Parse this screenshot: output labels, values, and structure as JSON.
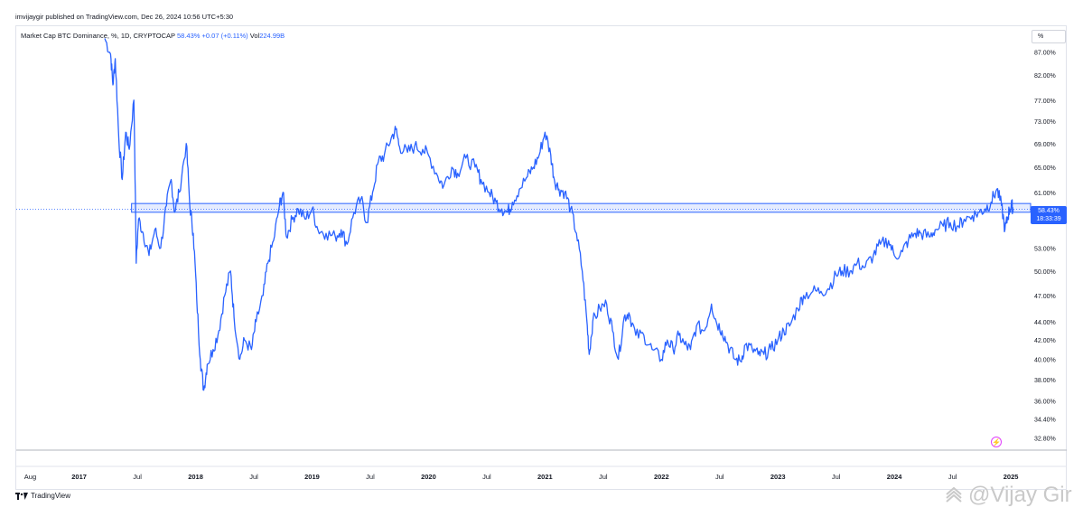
{
  "header": {
    "publisher_line": "imvijaygir published on TradingView.com, Dec 26, 2024 10:56 UTC+5:30"
  },
  "legend": {
    "symbol": "Market Cap BTC Dominance, %, 1D, CRYPTOCAP",
    "price": "58.43%",
    "change": "+0.07 (+0.11%)",
    "vol_label": "Vol",
    "vol_value": "224.99B"
  },
  "scale_button": "%",
  "price_tag": {
    "value": "58.43%",
    "countdown": "18:33:39"
  },
  "footer": {
    "brand": "TradingView",
    "watermark": "@Vijay Gir"
  },
  "colors": {
    "series": "#2962ff",
    "axis_text": "#131722",
    "grid": "#f0f3fa",
    "highlight_box": "#2962ff"
  },
  "chart_data": {
    "type": "line",
    "title": "Market Cap BTC Dominance, %, 1D, CRYPTOCAP",
    "y_scale": "log",
    "ylim": [
      31.8,
      92.6
    ],
    "xlim": [
      2016.46,
      2025.17
    ],
    "y_ticks": [
      "87.00%",
      "82.00%",
      "77.00%",
      "73.00%",
      "69.00%",
      "65.00%",
      "61.00%",
      "58.43%",
      "53.00%",
      "50.00%",
      "47.00%",
      "44.00%",
      "42.00%",
      "40.00%",
      "38.00%",
      "36.00%",
      "34.40%",
      "32.80%"
    ],
    "x_ticks": [
      {
        "label": "Aug",
        "t": 2016.58
      },
      {
        "label": "2017",
        "t": 2017.0
      },
      {
        "label": "Jul",
        "t": 2017.5
      },
      {
        "label": "2018",
        "t": 2018.0
      },
      {
        "label": "Jul",
        "t": 2018.5
      },
      {
        "label": "2019",
        "t": 2019.0
      },
      {
        "label": "Jul",
        "t": 2019.5
      },
      {
        "label": "2020",
        "t": 2020.0
      },
      {
        "label": "Jul",
        "t": 2020.5
      },
      {
        "label": "2021",
        "t": 2021.0
      },
      {
        "label": "Jul",
        "t": 2021.5
      },
      {
        "label": "2022",
        "t": 2022.0
      },
      {
        "label": "Jul",
        "t": 2022.5
      },
      {
        "label": "2023",
        "t": 2023.0
      },
      {
        "label": "Jul",
        "t": 2023.5
      },
      {
        "label": "2024",
        "t": 2024.0
      },
      {
        "label": "Jul",
        "t": 2024.5
      },
      {
        "label": "2025",
        "t": 2025.0
      }
    ],
    "highlight_zone": {
      "low": 58.0,
      "high": 59.3,
      "t_start": 2017.45,
      "t_end": 2025.17
    },
    "current_value": 58.43,
    "series": [
      {
        "points": [
          [
            2017.22,
            90.0
          ],
          [
            2017.27,
            86.5
          ],
          [
            2017.29,
            80.0
          ],
          [
            2017.31,
            85.5
          ],
          [
            2017.34,
            70.0
          ],
          [
            2017.37,
            63.0
          ],
          [
            2017.4,
            71.0
          ],
          [
            2017.43,
            68.0
          ],
          [
            2017.47,
            77.0
          ],
          [
            2017.49,
            51.0
          ],
          [
            2017.51,
            57.0
          ],
          [
            2017.55,
            55.0
          ],
          [
            2017.6,
            52.0
          ],
          [
            2017.65,
            55.5
          ],
          [
            2017.7,
            53.0
          ],
          [
            2017.75,
            59.0
          ],
          [
            2017.79,
            63.0
          ],
          [
            2017.82,
            58.0
          ],
          [
            2017.86,
            61.0
          ],
          [
            2017.92,
            69.0
          ],
          [
            2017.95,
            59.0
          ],
          [
            2017.98,
            55.0
          ],
          [
            2018.01,
            46.5
          ],
          [
            2018.04,
            40.0
          ],
          [
            2018.07,
            37.0
          ],
          [
            2018.1,
            39.5
          ],
          [
            2018.15,
            41.0
          ],
          [
            2018.2,
            43.0
          ],
          [
            2018.25,
            47.0
          ],
          [
            2018.3,
            50.0
          ],
          [
            2018.33,
            44.5
          ],
          [
            2018.38,
            40.0
          ],
          [
            2018.42,
            42.0
          ],
          [
            2018.48,
            41.0
          ],
          [
            2018.52,
            44.0
          ],
          [
            2018.58,
            47.0
          ],
          [
            2018.62,
            51.0
          ],
          [
            2018.67,
            54.0
          ],
          [
            2018.72,
            59.0
          ],
          [
            2018.75,
            61.0
          ],
          [
            2018.78,
            54.5
          ],
          [
            2018.83,
            57.0
          ],
          [
            2018.88,
            58.5
          ],
          [
            2018.94,
            57.0
          ],
          [
            2019.0,
            58.5
          ],
          [
            2019.05,
            55.5
          ],
          [
            2019.12,
            55.0
          ],
          [
            2019.2,
            54.5
          ],
          [
            2019.25,
            55.5
          ],
          [
            2019.3,
            53.5
          ],
          [
            2019.36,
            58.0
          ],
          [
            2019.42,
            60.0
          ],
          [
            2019.47,
            56.5
          ],
          [
            2019.52,
            61.0
          ],
          [
            2019.57,
            66.0
          ],
          [
            2019.62,
            67.0
          ],
          [
            2019.68,
            70.0
          ],
          [
            2019.72,
            71.5
          ],
          [
            2019.75,
            68.5
          ],
          [
            2019.82,
            67.5
          ],
          [
            2019.88,
            68.5
          ],
          [
            2019.95,
            68.0
          ],
          [
            2020.0,
            67.0
          ],
          [
            2020.08,
            63.5
          ],
          [
            2020.13,
            62.0
          ],
          [
            2020.2,
            65.0
          ],
          [
            2020.25,
            64.0
          ],
          [
            2020.32,
            66.5
          ],
          [
            2020.4,
            65.0
          ],
          [
            2020.45,
            63.0
          ],
          [
            2020.52,
            61.0
          ],
          [
            2020.58,
            59.5
          ],
          [
            2020.63,
            58.5
          ],
          [
            2020.68,
            58.0
          ],
          [
            2020.72,
            59.5
          ],
          [
            2020.78,
            61.5
          ],
          [
            2020.85,
            63.5
          ],
          [
            2020.9,
            65.0
          ],
          [
            2020.95,
            67.0
          ],
          [
            2021.0,
            71.0
          ],
          [
            2021.05,
            67.0
          ],
          [
            2021.08,
            63.0
          ],
          [
            2021.12,
            61.5
          ],
          [
            2021.17,
            61.0
          ],
          [
            2021.22,
            58.5
          ],
          [
            2021.27,
            55.0
          ],
          [
            2021.32,
            50.0
          ],
          [
            2021.36,
            44.0
          ],
          [
            2021.38,
            40.5
          ],
          [
            2021.41,
            44.0
          ],
          [
            2021.47,
            45.5
          ],
          [
            2021.53,
            46.0
          ],
          [
            2021.58,
            43.0
          ],
          [
            2021.63,
            40.0
          ],
          [
            2021.68,
            44.5
          ],
          [
            2021.72,
            45.0
          ],
          [
            2021.78,
            42.5
          ],
          [
            2021.85,
            42.5
          ],
          [
            2021.92,
            41.0
          ],
          [
            2022.0,
            40.0
          ],
          [
            2022.05,
            42.0
          ],
          [
            2022.1,
            41.0
          ],
          [
            2022.15,
            42.5
          ],
          [
            2022.2,
            41.5
          ],
          [
            2022.25,
            41.0
          ],
          [
            2022.3,
            43.5
          ],
          [
            2022.37,
            43.0
          ],
          [
            2022.43,
            46.0
          ],
          [
            2022.47,
            44.0
          ],
          [
            2022.52,
            43.0
          ],
          [
            2022.57,
            41.5
          ],
          [
            2022.63,
            40.0
          ],
          [
            2022.68,
            39.8
          ],
          [
            2022.72,
            41.5
          ],
          [
            2022.78,
            41.0
          ],
          [
            2022.83,
            40.5
          ],
          [
            2022.88,
            40.5
          ],
          [
            2022.94,
            41.0
          ],
          [
            2023.0,
            42.0
          ],
          [
            2023.05,
            43.0
          ],
          [
            2023.1,
            43.5
          ],
          [
            2023.17,
            45.5
          ],
          [
            2023.22,
            47.0
          ],
          [
            2023.3,
            47.5
          ],
          [
            2023.37,
            47.5
          ],
          [
            2023.43,
            47.8
          ],
          [
            2023.5,
            49.5
          ],
          [
            2023.55,
            50.0
          ],
          [
            2023.62,
            50.0
          ],
          [
            2023.68,
            51.0
          ],
          [
            2023.75,
            50.5
          ],
          [
            2023.82,
            52.0
          ],
          [
            2023.88,
            53.5
          ],
          [
            2023.95,
            54.0
          ],
          [
            2024.0,
            52.0
          ],
          [
            2024.07,
            52.5
          ],
          [
            2024.12,
            54.0
          ],
          [
            2024.18,
            55.0
          ],
          [
            2024.23,
            55.0
          ],
          [
            2024.3,
            54.5
          ],
          [
            2024.35,
            55.5
          ],
          [
            2024.42,
            56.0
          ],
          [
            2024.48,
            56.5
          ],
          [
            2024.55,
            56.0
          ],
          [
            2024.6,
            57.0
          ],
          [
            2024.67,
            57.5
          ],
          [
            2024.73,
            58.0
          ],
          [
            2024.78,
            58.5
          ],
          [
            2024.83,
            59.5
          ],
          [
            2024.88,
            61.5
          ],
          [
            2024.92,
            59.0
          ],
          [
            2024.95,
            55.5
          ],
          [
            2024.97,
            57.0
          ],
          [
            2024.99,
            58.5
          ],
          [
            2025.01,
            59.0
          ],
          [
            2025.02,
            58.4
          ]
        ]
      }
    ]
  }
}
